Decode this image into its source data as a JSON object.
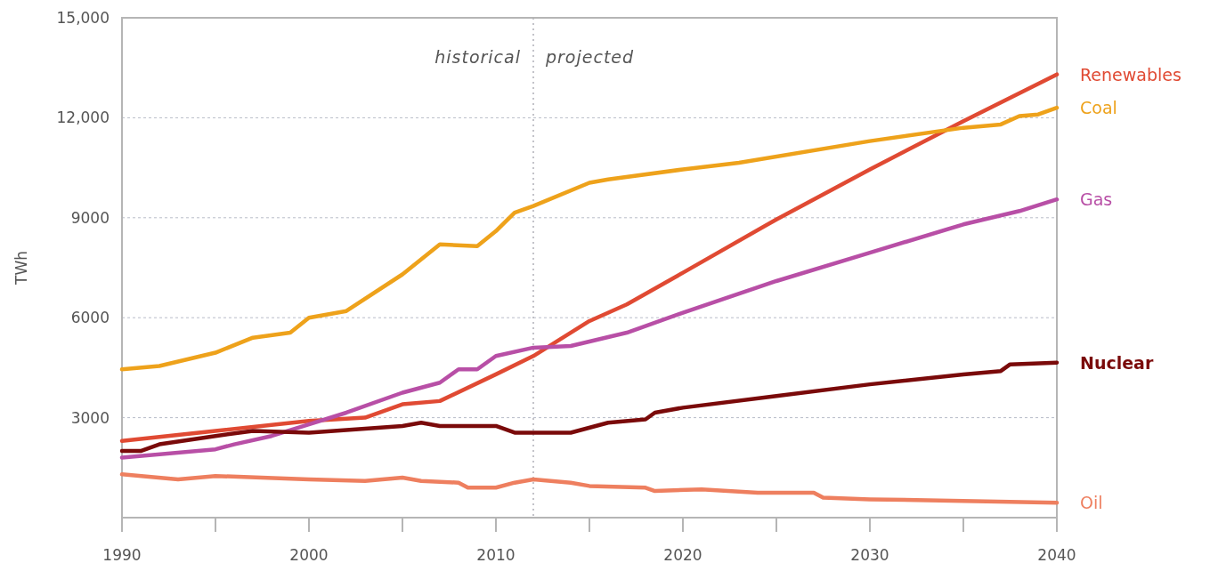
{
  "chart_data": {
    "type": "line",
    "ylabel": "TWh",
    "xlim": [
      1990,
      2040
    ],
    "xticks": [
      1990,
      {
        "value": 1995,
        "label": null
      },
      2000,
      {
        "value": 2005,
        "label": null
      },
      2010,
      {
        "value": 2015,
        "label": null
      },
      2020,
      {
        "value": 2025,
        "label": null
      },
      2030,
      {
        "value": 2035,
        "label": null
      },
      2040
    ],
    "ylim": [
      0,
      15000
    ],
    "yticks": [
      {
        "value": 3000,
        "label": "3000"
      },
      {
        "value": 6000,
        "label": "6000"
      },
      {
        "value": 9000,
        "label": "9000"
      },
      {
        "value": 12000,
        "label": "12,000"
      },
      {
        "value": 15000,
        "label": "15,000"
      }
    ],
    "grid": "y",
    "legend": false,
    "line_style": "solid",
    "marker": "none",
    "ref_lines": [
      {
        "axis": "x",
        "value": 2012,
        "line_style": "dotted",
        "color": "#b0b0b8"
      }
    ],
    "annotations": [
      "historical",
      "projected"
    ],
    "series": [
      {
        "name": "Renewables",
        "color": "#e04a33",
        "x": [
          1990,
          1995,
          2000,
          2003,
          2005,
          2007,
          2010,
          2012,
          2015,
          2017,
          2020,
          2025,
          2030,
          2035,
          2040
        ],
        "values": [
          2300,
          2600,
          2900,
          3000,
          3400,
          3500,
          4300,
          4850,
          5900,
          6400,
          7350,
          8950,
          10450,
          11900,
          13300
        ]
      },
      {
        "name": "Coal",
        "color": "#eea21b",
        "x": [
          1990,
          1992,
          1995,
          1997,
          1999,
          2000,
          2002,
          2005,
          2007,
          2009,
          2010,
          2011,
          2012,
          2015,
          2016,
          2020,
          2023,
          2030,
          2035,
          2037,
          2038,
          2039,
          2040
        ],
        "values": [
          4450,
          4550,
          4950,
          5400,
          5550,
          6000,
          6200,
          7300,
          8200,
          8150,
          8600,
          9150,
          9350,
          10050,
          10150,
          10450,
          10650,
          11300,
          11700,
          11800,
          12050,
          12100,
          12300
        ]
      },
      {
        "name": "Gas",
        "color": "#b84fa6",
        "x": [
          1990,
          1995,
          1996,
          1998,
          2000,
          2002,
          2005,
          2007,
          2008,
          2009,
          2010,
          2012,
          2014,
          2017,
          2020,
          2025,
          2030,
          2035,
          2038,
          2040
        ],
        "values": [
          1800,
          2050,
          2200,
          2450,
          2800,
          3150,
          3750,
          4050,
          4450,
          4450,
          4850,
          5100,
          5150,
          5550,
          6150,
          7100,
          7950,
          8800,
          9200,
          9550
        ]
      },
      {
        "name": "Nuclear",
        "color": "#7a0a0a",
        "x": [
          1990,
          1991,
          1992,
          1995,
          1997,
          2000,
          2005,
          2006,
          2007,
          2010,
          2011,
          2014,
          2016,
          2018,
          2018.5,
          2020,
          2025,
          2030,
          2035,
          2037,
          2037.5,
          2040
        ],
        "values": [
          2000,
          2000,
          2200,
          2450,
          2600,
          2550,
          2750,
          2850,
          2750,
          2750,
          2550,
          2550,
          2850,
          2950,
          3150,
          3300,
          3650,
          4000,
          4300,
          4400,
          4600,
          4650
        ]
      },
      {
        "name": "Oil",
        "color": "#ee7f5f",
        "x": [
          1990,
          1993,
          1995,
          2000,
          2003,
          2005,
          2006,
          2008,
          2008.5,
          2010,
          2011,
          2012,
          2014,
          2015,
          2018,
          2018.5,
          2021,
          2024,
          2027,
          2027.5,
          2030,
          2040
        ],
        "values": [
          1300,
          1150,
          1250,
          1150,
          1100,
          1200,
          1100,
          1050,
          900,
          900,
          1050,
          1150,
          1050,
          950,
          900,
          800,
          850,
          750,
          750,
          600,
          550,
          450
        ]
      }
    ]
  }
}
